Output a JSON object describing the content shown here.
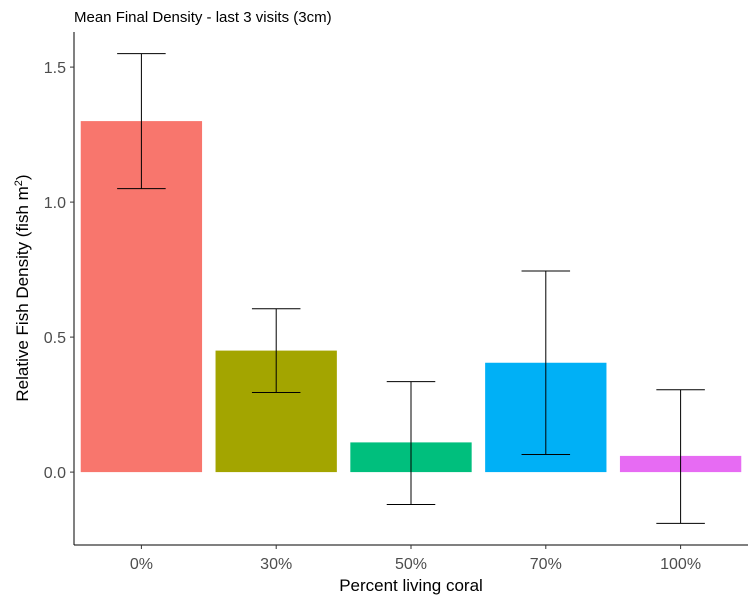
{
  "chart_data": {
    "type": "bar",
    "title": "Mean Final Density - last 3 visits (3cm)",
    "xlabel": "Percent living coral",
    "ylabel_main": "Relative Fish Density (fish m",
    "ylabel_sup": "2",
    "ylabel_end": ")",
    "categories": [
      "0%",
      "30%",
      "50%",
      "70%",
      "100%"
    ],
    "values": [
      1.3,
      0.45,
      0.11,
      0.405,
      0.06
    ],
    "error_low": [
      1.05,
      0.295,
      -0.12,
      0.065,
      -0.19
    ],
    "error_high": [
      1.55,
      0.605,
      0.335,
      0.745,
      0.305
    ],
    "colors": [
      "#F8766D",
      "#A3A500",
      "#00BF7D",
      "#00B0F6",
      "#E76BF3"
    ],
    "ylim": [
      -0.27,
      1.63
    ],
    "yticks": [
      0.0,
      0.5,
      1.0,
      1.5
    ],
    "ytick_labels": [
      "0.0",
      "0.5",
      "1.0",
      "1.5"
    ],
    "grid": false,
    "legend": "none"
  }
}
